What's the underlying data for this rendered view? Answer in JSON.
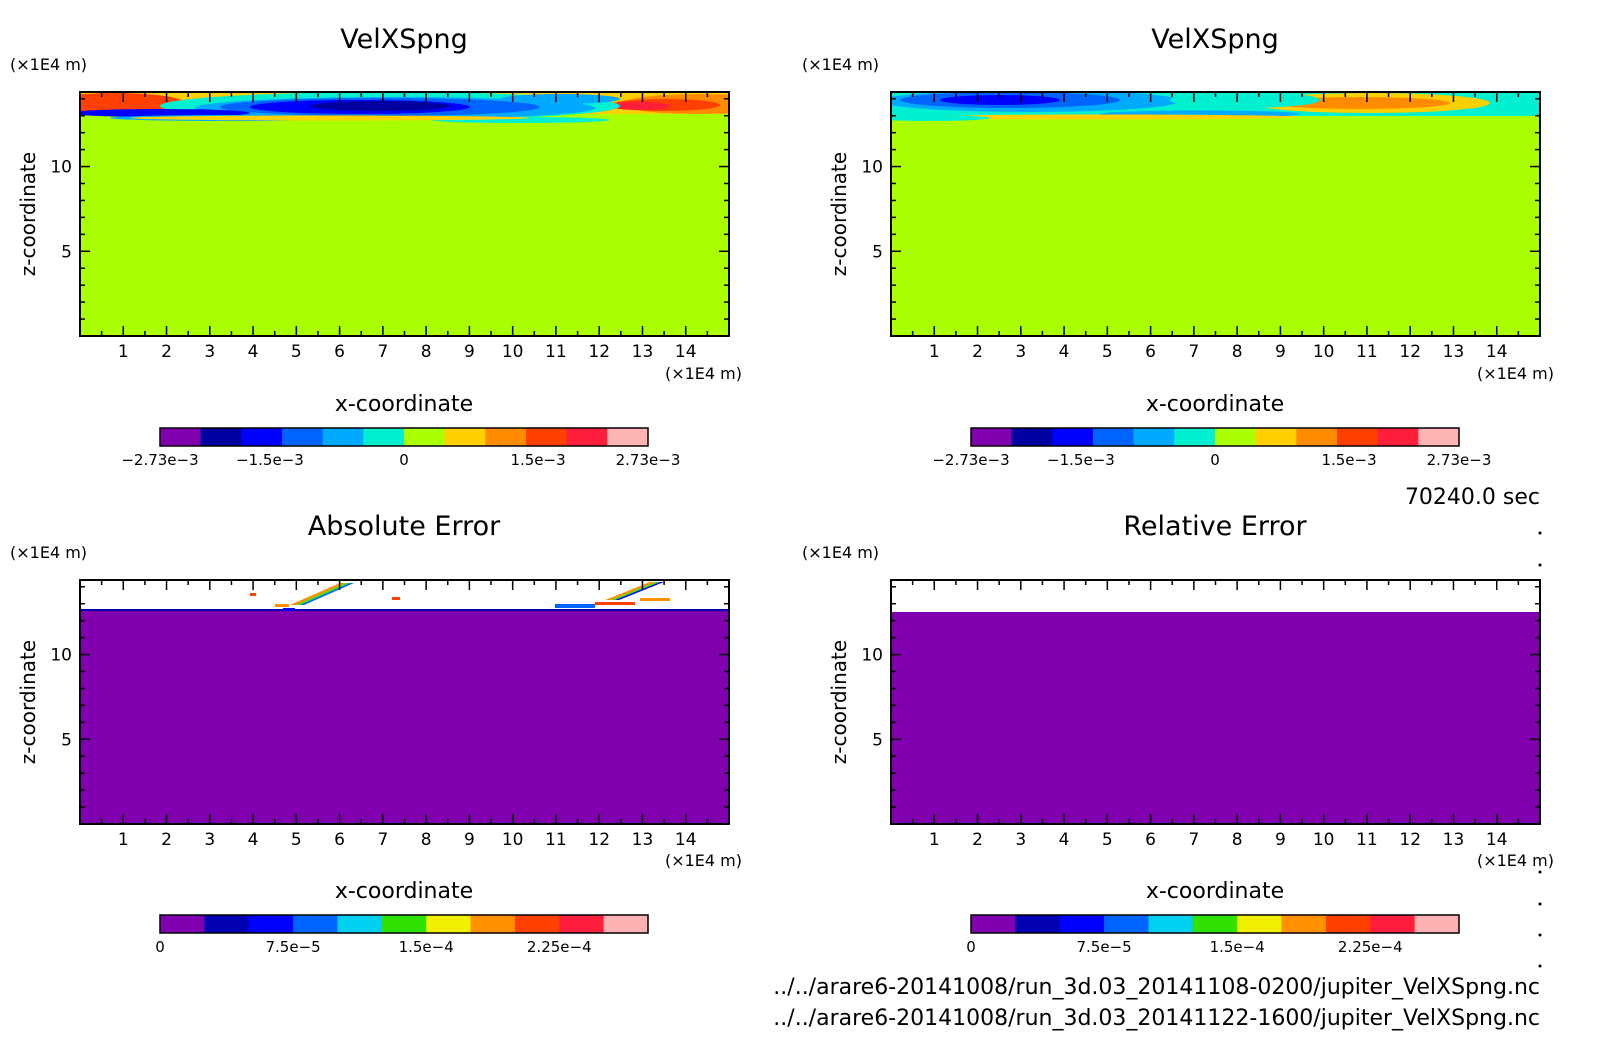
{
  "time_label": "70240.0 sec",
  "file_paths": [
    "../../arare6-20141008/run_3d.03_20141108-0200/jupiter_VelXSpng.nc",
    "../../arare6-20141008/run_3d.03_20141122-1600/jupiter_VelXSpng.nc"
  ],
  "colors": {
    "vel": [
      "#8000b0",
      "#0000a0",
      "#0000ff",
      "#0064ff",
      "#00aaff",
      "#00f0d0",
      "#aaff00",
      "#ffd000",
      "#ff8c00",
      "#ff4000",
      "#ff1e3c",
      "#ffb4b4"
    ],
    "err": [
      "#8000b0",
      "#0000b0",
      "#0000ff",
      "#0064ff",
      "#00d0f0",
      "#30e000",
      "#f0f000",
      "#ff9000",
      "#ff4000",
      "#ff1e3c",
      "#ffb0b0"
    ]
  },
  "chart_data": [
    {
      "type": "heatmap",
      "title": "VelXSpng",
      "xlabel": "x-coordinate",
      "ylabel": "z-coordinate",
      "x_unit": "(×1E4 m)",
      "z_unit": "(×1E4 m)",
      "xlim": [
        0,
        15
      ],
      "ylim": [
        0,
        14.4
      ],
      "xticks": [
        "1",
        "2",
        "3",
        "4",
        "5",
        "6",
        "7",
        "8",
        "9",
        "10",
        "11",
        "12",
        "13",
        "14"
      ],
      "yticks": [
        "5",
        "10"
      ],
      "colorbar_labels": [
        {
          "label": "−2.73e−3",
          "value": -0.00273
        },
        {
          "label": "−1.5e−3",
          "value": -0.0015
        },
        {
          "label": "0",
          "value": 0
        },
        {
          "label": "1.5e−3",
          "value": 0.0015
        },
        {
          "label": "2.73e−3",
          "value": 0.00273
        }
      ],
      "colorbar_range": [
        -0.00273,
        0.00273
      ],
      "field": "background 0 (z below ~13); sponge layer z ~13–14.4: negative (≈−2.7e-3) at x 3–9, positive (≈+2.5e-3) at x 0–2 and 11–15"
    },
    {
      "type": "heatmap",
      "title": "VelXSpng",
      "xlabel": "x-coordinate",
      "ylabel": "z-coordinate",
      "x_unit": "(×1E4 m)",
      "z_unit": "(×1E4 m)",
      "xlim": [
        0,
        15
      ],
      "ylim": [
        0,
        14.4
      ],
      "xticks": [
        "1",
        "2",
        "3",
        "4",
        "5",
        "6",
        "7",
        "8",
        "9",
        "10",
        "11",
        "12",
        "13",
        "14"
      ],
      "yticks": [
        "5",
        "10"
      ],
      "colorbar_labels": [
        {
          "label": "−2.73e−3",
          "value": -0.00273
        },
        {
          "label": "−1.5e−3",
          "value": -0.0015
        },
        {
          "label": "0",
          "value": 0
        },
        {
          "label": "1.5e−3",
          "value": 0.0015
        },
        {
          "label": "2.73e−3",
          "value": 0.00273
        }
      ],
      "colorbar_range": [
        -0.00273,
        0.00273
      ],
      "field": "background 0 (z below ~13); sponge layer z ~13–14.4: negative (≈−1.8e-3) at x 0–6, positive (≈+1.6e-3) at x 9–14"
    },
    {
      "type": "heatmap",
      "title": "Absolute Error",
      "xlabel": "x-coordinate",
      "ylabel": "z-coordinate",
      "x_unit": "(×1E4 m)",
      "z_unit": "(×1E4 m)",
      "xlim": [
        0,
        15
      ],
      "ylim": [
        0,
        14.4
      ],
      "xticks": [
        "1",
        "2",
        "3",
        "4",
        "5",
        "6",
        "7",
        "8",
        "9",
        "10",
        "11",
        "12",
        "13",
        "14"
      ],
      "yticks": [
        "5",
        "10"
      ],
      "colorbar_labels": [
        {
          "label": "0",
          "value": 0
        },
        {
          "label": "7.5e−5",
          "value": 7.5e-05
        },
        {
          "label": "1.5e−4",
          "value": 0.00015
        },
        {
          "label": "2.25e−4",
          "value": 0.000225
        }
      ],
      "colorbar_range": [
        0,
        0.000275
      ],
      "field": "0 below z ~13; small nonzero errors near x 4–6 and 11–14 at z ~13–14.4; above ~13.1 mostly undefined (white)"
    },
    {
      "type": "heatmap",
      "title": "Relative Error",
      "xlabel": "x-coordinate",
      "ylabel": "z-coordinate",
      "x_unit": "(×1E4 m)",
      "z_unit": "(×1E4 m)",
      "xlim": [
        0,
        15
      ],
      "ylim": [
        0,
        14.4
      ],
      "xticks": [
        "1",
        "2",
        "3",
        "4",
        "5",
        "6",
        "7",
        "8",
        "9",
        "10",
        "11",
        "12",
        "13",
        "14"
      ],
      "yticks": [
        "5",
        "10"
      ],
      "colorbar_labels": [
        {
          "label": "0",
          "value": 0
        },
        {
          "label": "7.5e−5",
          "value": 7.5e-05
        },
        {
          "label": "1.5e−4",
          "value": 0.00015
        },
        {
          "label": "2.25e−4",
          "value": 0.000225
        }
      ],
      "colorbar_range": [
        0,
        0.000275
      ],
      "field": "0 below z ~13; undefined (white) above z ~13"
    }
  ]
}
